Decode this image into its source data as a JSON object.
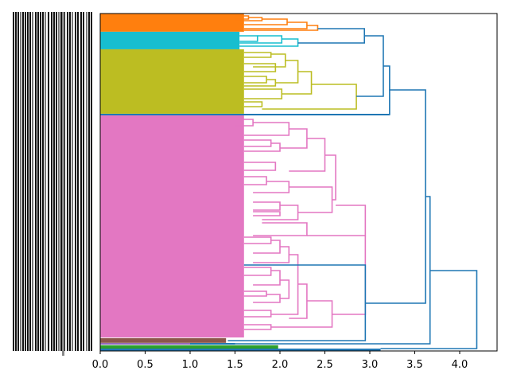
{
  "chart_data": {
    "type": "dendrogram",
    "orientation": "left",
    "title": "",
    "xlabel": "",
    "ylabel": "",
    "xlim": [
      0.0,
      4.4
    ],
    "x_ticks": [
      0.0,
      0.5,
      1.0,
      1.5,
      2.0,
      2.5,
      3.0,
      3.5,
      4.0
    ],
    "x_tick_labels": [
      "0.0",
      "0.5",
      "1.0",
      "1.5",
      "2.0",
      "2.5",
      "3.0",
      "3.5",
      "4.0"
    ],
    "leaf_label_text": "dcbrison-series03_002-1000",
    "leaf_label_count": 60,
    "colors": {
      "orange": "#ff7f0e",
      "cyan": "#17becf",
      "olive": "#bcbd22",
      "pink": "#e377c2",
      "brown": "#8c564b",
      "purple": "#9467bd",
      "green": "#2ca02c",
      "above_threshold": "#1f77b4"
    },
    "clusters": [
      {
        "name": "orange",
        "color": "#ff7f0e",
        "leaf_fraction_start": 0.0,
        "leaf_fraction_end": 0.054,
        "leaf_height": 1.6,
        "merge_height": 2.42
      },
      {
        "name": "cyan",
        "color": "#17becf",
        "leaf_fraction_start": 0.054,
        "leaf_fraction_end": 0.106,
        "leaf_height": 1.55,
        "merge_height": 2.2
      },
      {
        "name": "olive",
        "color": "#bcbd22",
        "leaf_fraction_start": 0.106,
        "leaf_fraction_end": 0.297,
        "leaf_height": 1.6,
        "merge_height": 2.85
      },
      {
        "name": "pink",
        "color": "#e377c2",
        "leaf_fraction_start": 0.302,
        "leaf_fraction_end": 0.96,
        "leaf_height": 1.6,
        "merge_height": 2.95
      },
      {
        "name": "brown",
        "color": "#8c564b",
        "leaf_fraction_start": 0.962,
        "leaf_fraction_end": 0.976,
        "leaf_height": 1.4,
        "merge_height": 1.42
      },
      {
        "name": "green",
        "color": "#2ca02c",
        "leaf_fraction_start": 0.983,
        "leaf_fraction_end": 0.995,
        "leaf_height": 1.98,
        "merge_height": 2.0
      }
    ],
    "top_links": [
      {
        "label": "orange+cyan",
        "height": 2.94
      },
      {
        "label": "(orange+cyan)+olive",
        "height": 3.15
      },
      {
        "label": "top group + single leaf",
        "height": 3.22
      },
      {
        "label": "pink + single leaf",
        "height": 2.97
      },
      {
        "label": "top group + pink",
        "height": 3.62
      },
      {
        "label": "+ brown/purple leaves",
        "height": 3.67
      },
      {
        "label": "root",
        "height": 4.19
      }
    ]
  }
}
